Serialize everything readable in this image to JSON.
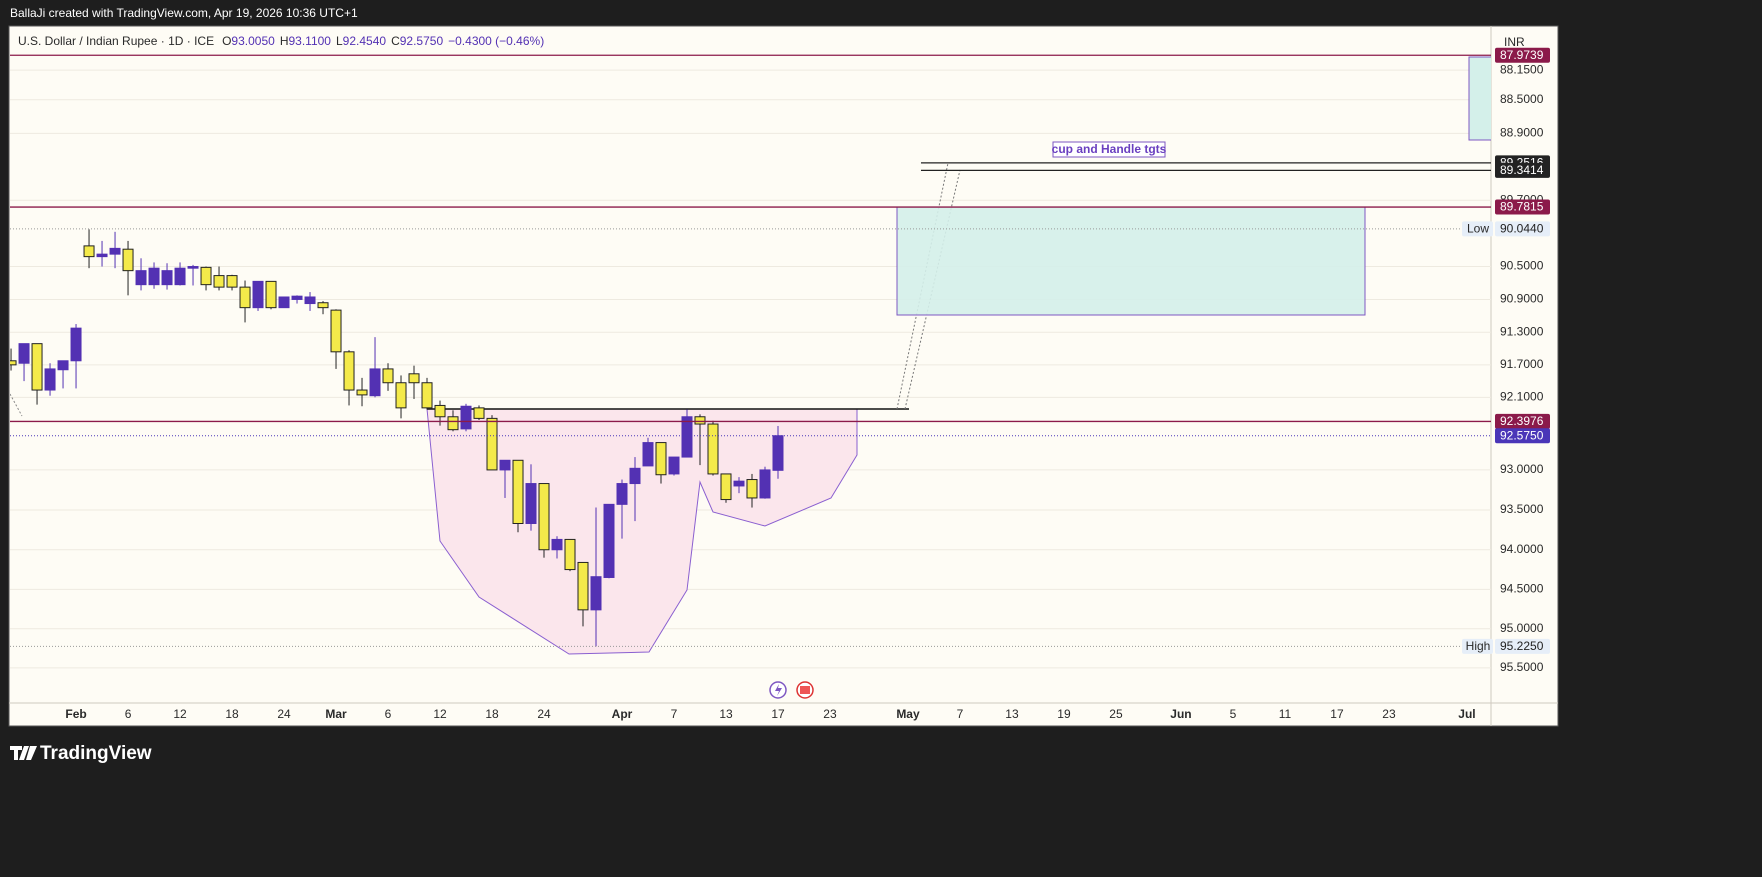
{
  "page": {
    "credit": "BallaJi created with TradingView.com, Apr 19, 2026 10:36 UTC+1",
    "brand": "TradingView"
  },
  "chart_data": {
    "type": "candlestick",
    "legend": {
      "symbol": "U.S. Dollar / Indian Rupee · 1D · ICE",
      "items": [
        {
          "key": "O",
          "value": "93.0050"
        },
        {
          "key": "H",
          "value": "93.1100"
        },
        {
          "key": "L",
          "value": "92.4540"
        },
        {
          "key": "C",
          "value": "92.5750"
        }
      ],
      "change": "−0.4300 (−0.46%)"
    },
    "currency": "INR",
    "annotation": "cup and Handle tgts",
    "log_scale": true,
    "grid": true,
    "up_color": "#f4ea4a",
    "down_color": "#5331b3",
    "ylim": [
      95.95,
      87.63
    ],
    "yticks": [
      {
        "value": 88.15,
        "label": "88.1500"
      },
      {
        "value": 88.5,
        "label": "88.5000"
      },
      {
        "value": 88.9,
        "label": "88.9000"
      },
      {
        "value": 89.7,
        "label": "89.7000"
      },
      {
        "value": 90.5,
        "label": "90.5000"
      },
      {
        "value": 90.9,
        "label": "90.9000"
      },
      {
        "value": 91.3,
        "label": "91.3000"
      },
      {
        "value": 91.7,
        "label": "91.7000"
      },
      {
        "value": 92.1,
        "label": "92.1000"
      },
      {
        "value": 93,
        "label": "93.0000"
      },
      {
        "value": 93.5,
        "label": "93.5000"
      },
      {
        "value": 94,
        "label": "94.0000"
      },
      {
        "value": 94.5,
        "label": "94.5000"
      },
      {
        "value": 95,
        "label": "95.0000"
      },
      {
        "value": 95.5,
        "label": "95.5000"
      }
    ],
    "xlim": [
      -5.08,
      108.85
    ],
    "xticks": [
      {
        "value": 0,
        "label": "Feb"
      },
      {
        "value": 4,
        "label": "6"
      },
      {
        "value": 8,
        "label": "12"
      },
      {
        "value": 12,
        "label": "18"
      },
      {
        "value": 16,
        "label": "24"
      },
      {
        "value": 20,
        "label": "Mar"
      },
      {
        "value": 24,
        "label": "6"
      },
      {
        "value": 28,
        "label": "12"
      },
      {
        "value": 32,
        "label": "18"
      },
      {
        "value": 36,
        "label": "24"
      },
      {
        "value": 42,
        "label": "Apr"
      },
      {
        "value": 46,
        "label": "7"
      },
      {
        "value": 50,
        "label": "13"
      },
      {
        "value": 54,
        "label": "17"
      },
      {
        "value": 58,
        "label": "23"
      },
      {
        "value": 64,
        "label": "May"
      },
      {
        "value": 68,
        "label": "7"
      },
      {
        "value": 72,
        "label": "13"
      },
      {
        "value": 76,
        "label": "19"
      },
      {
        "value": 80,
        "label": "25"
      },
      {
        "value": 85,
        "label": "Jun"
      },
      {
        "value": 89,
        "label": "5"
      },
      {
        "value": 93,
        "label": "11"
      },
      {
        "value": 97,
        "label": "17"
      },
      {
        "value": 101,
        "label": "23"
      },
      {
        "value": 107,
        "label": "Jul"
      }
    ],
    "ohlc": {
      "x": [
        -5,
        -4,
        -3,
        -2,
        -1,
        0,
        1,
        2,
        3,
        4,
        5,
        6,
        7,
        8,
        9,
        10,
        11,
        12,
        13,
        14,
        15,
        16,
        17,
        18,
        19,
        20,
        21,
        22,
        23,
        24,
        25,
        26,
        27,
        28,
        29,
        30,
        31,
        32,
        33,
        34,
        35,
        36,
        37,
        38,
        39,
        40,
        41,
        42,
        43,
        44,
        45,
        46,
        47,
        48,
        49,
        50,
        51,
        52,
        53,
        54
      ],
      "open": [
        91.65,
        91.68,
        91.44,
        92.01,
        91.76,
        91.65,
        90.25,
        90.38,
        90.35,
        90.29,
        90.72,
        90.72,
        90.72,
        90.72,
        90.52,
        90.51,
        90.61,
        90.61,
        90.75,
        91.0,
        90.68,
        91.0,
        90.9,
        90.95,
        90.94,
        91.03,
        91.54,
        92.01,
        92.08,
        91.75,
        91.92,
        91.81,
        91.92,
        92.2,
        92.34,
        92.49,
        92.23,
        92.36,
        93.0,
        92.88,
        93.67,
        93.17,
        94.0,
        93.87,
        94.16,
        94.76,
        94.35,
        93.43,
        93.17,
        92.95,
        92.66,
        93.05,
        92.84,
        92.34,
        92.43,
        93.05,
        93.2,
        93.12,
        93.35,
        93.005
      ],
      "high": [
        91.77,
        91.9,
        92.19,
        92.08,
        91.99,
        91.99,
        90.52,
        90.5,
        90.52,
        90.85,
        90.79,
        90.77,
        90.78,
        90.73,
        90.73,
        90.79,
        90.79,
        90.79,
        91.18,
        91.04,
        91.02,
        91.0,
        90.95,
        91.04,
        91.08,
        91.75,
        92.2,
        92.21,
        92.1,
        92.02,
        92.36,
        92.12,
        92.25,
        92.45,
        92.52,
        92.52,
        92.38,
        93.0,
        93.35,
        93.78,
        93.76,
        94.1,
        94.11,
        94.27,
        94.97,
        95.225,
        94.36,
        93.86,
        93.64,
        92.95,
        93.17,
        93.07,
        92.84,
        92.94,
        93.07,
        93.41,
        93.29,
        93.47,
        93.36,
        93.11
      ],
      "low": [
        91.5,
        91.44,
        91.44,
        91.68,
        91.65,
        91.2,
        90.05,
        90.19,
        90.08,
        90.19,
        90.4,
        90.45,
        90.46,
        90.45,
        90.48,
        90.5,
        90.5,
        90.6,
        90.67,
        90.68,
        90.68,
        90.87,
        90.85,
        90.81,
        90.92,
        91.02,
        91.52,
        91.86,
        91.36,
        91.68,
        91.83,
        91.71,
        91.86,
        92.14,
        92.26,
        92.18,
        92.2,
        92.32,
        92.88,
        92.88,
        92.93,
        93.17,
        93.83,
        93.87,
        94.16,
        93.47,
        93.43,
        93.12,
        92.84,
        92.6,
        92.66,
        92.84,
        92.25,
        92.31,
        92.39,
        93.05,
        93.09,
        93.05,
        92.96,
        92.454
      ],
      "close": [
        91.7,
        91.44,
        92.01,
        91.75,
        91.65,
        91.25,
        90.38,
        90.35,
        90.28,
        90.55,
        90.55,
        90.52,
        90.55,
        90.52,
        90.5,
        90.72,
        90.75,
        90.75,
        91.0,
        90.68,
        91.0,
        90.87,
        90.86,
        90.87,
        91.0,
        91.54,
        92.01,
        92.07,
        91.75,
        91.92,
        92.23,
        91.92,
        92.23,
        92.34,
        92.5,
        92.21,
        92.36,
        93.0,
        92.88,
        93.67,
        93.17,
        94.0,
        93.87,
        94.25,
        94.76,
        94.34,
        93.43,
        93.17,
        92.98,
        92.66,
        93.06,
        92.84,
        92.34,
        92.43,
        93.05,
        93.37,
        93.14,
        93.35,
        93.0,
        92.575
      ]
    },
    "price_labels": [
      {
        "value": 87.9739,
        "label": "87.9739",
        "color": "#8b1a4a",
        "line": "solid"
      },
      {
        "value": 89.2516,
        "label": "89.2516",
        "color": "#222222",
        "line": "solid",
        "from_x": 65
      },
      {
        "value": 89.3414,
        "label": "89.3414",
        "color": "#222222",
        "line": "solid",
        "from_x": 65
      },
      {
        "value": 89.7815,
        "label": "89.7815",
        "color": "#8b1a4a",
        "line": "solid"
      },
      {
        "value": 90.044,
        "label": "90.0440",
        "color": "#e6eef8",
        "line": "dotted",
        "tag": "Low"
      },
      {
        "value": 92.3976,
        "label": "92.3976",
        "color": "#8b1a4a",
        "line": "solid"
      },
      {
        "value": 92.575,
        "label": "92.5750",
        "color": "#4a36b8",
        "line": "dotted"
      },
      {
        "value": 95.225,
        "label": "95.2250",
        "color": "#e6eef8",
        "line": "dotted",
        "tag": "High"
      }
    ]
  }
}
